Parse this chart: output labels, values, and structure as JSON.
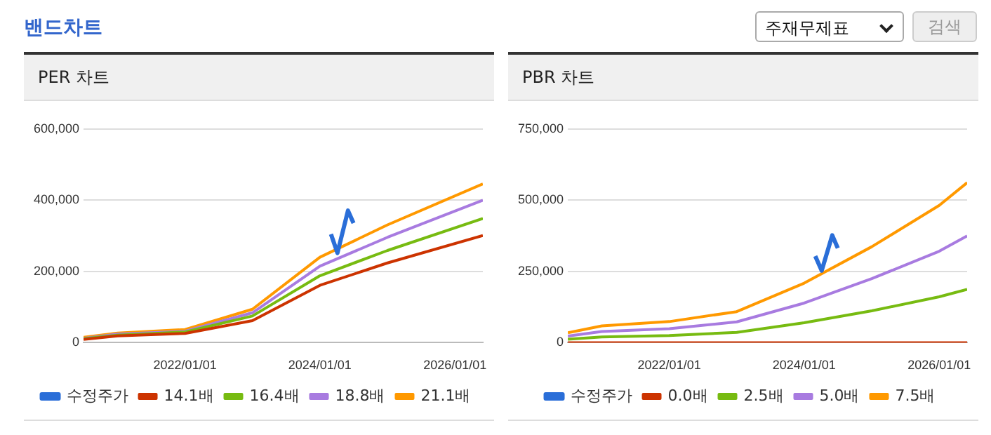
{
  "chart_data": [
    {
      "type": "line",
      "title": "PER 차트",
      "annotations": [
        "밴드차트"
      ],
      "x": [
        "2020-07",
        "2021-01",
        "2022-01",
        "2023-01",
        "2024-01",
        "2025-01",
        "2026-06"
      ],
      "series": [
        {
          "name": "수정주가",
          "color": "#2a6ed8",
          "x": [
            "2024-03-01",
            "2024-04-05",
            "2024-06-01",
            "2024-07-01"
          ],
          "values": [
            305000,
            252000,
            371000,
            336000
          ]
        },
        {
          "name": "14.1배",
          "color": "#cc3300",
          "values": [
            9000,
            19000,
            26000,
            62000,
            161000,
            224000,
            301000
          ]
        },
        {
          "name": "16.4배",
          "color": "#77bb11",
          "values": [
            11000,
            21000,
            30000,
            75000,
            188000,
            259000,
            349000
          ]
        },
        {
          "name": "18.8배",
          "color": "#a87be0",
          "values": [
            12000,
            24000,
            32000,
            84000,
            215000,
            296000,
            400000
          ]
        },
        {
          "name": "21.1배",
          "color": "#ff9900",
          "values": [
            15000,
            27000,
            37000,
            94000,
            240000,
            331000,
            446000
          ]
        }
      ],
      "xlim": [
        "2020-07",
        "2026-06"
      ],
      "xticks": [
        {
          "value": "2022-01-01",
          "label": "2022/01/01"
        },
        {
          "value": "2024-01-01",
          "label": "2024/01/01"
        },
        {
          "value": "2026-01-01",
          "label": "2026/01/01"
        }
      ],
      "ylim": [
        0,
        600000
      ],
      "yticks": [
        {
          "value": 0,
          "label": "0"
        },
        {
          "value": 200000,
          "label": "200,000"
        },
        {
          "value": 400000,
          "label": "400,000"
        },
        {
          "value": 600000,
          "label": "600,000"
        }
      ],
      "grid": "y",
      "legend": "bottom",
      "marker": "none"
    },
    {
      "type": "line",
      "title": "PBR 차트",
      "annotations": [
        "주재무제표",
        "검색"
      ],
      "x": [
        "2020-07",
        "2021-01",
        "2022-01",
        "2023-01",
        "2024-01",
        "2025-01",
        "2026-01",
        "2026-06"
      ],
      "series": [
        {
          "name": "수정주가",
          "color": "#2a6ed8",
          "x": [
            "2024-03-01",
            "2024-04-05",
            "2024-06-01",
            "2024-07-01"
          ],
          "values": [
            304000,
            253000,
            377000,
            332000
          ]
        },
        {
          "name": "0.0배",
          "color": "#cc3300",
          "values": [
            0,
            0,
            0,
            0,
            0,
            0,
            0,
            0
          ]
        },
        {
          "name": "2.5배",
          "color": "#77bb11",
          "values": [
            12000,
            20000,
            25000,
            36000,
            70000,
            112000,
            161000,
            187000
          ]
        },
        {
          "name": "5.0배",
          "color": "#a87be0",
          "values": [
            23000,
            39000,
            49000,
            73000,
            139000,
            225000,
            321000,
            375000
          ]
        },
        {
          "name": "7.5배",
          "color": "#ff9900",
          "values": [
            35000,
            59000,
            74000,
            109000,
            209000,
            337000,
            482000,
            562000
          ]
        }
      ],
      "xlim": [
        "2020-07",
        "2026-06"
      ],
      "xticks": [
        {
          "value": "2022-01-01",
          "label": "2022/01/01"
        },
        {
          "value": "2024-01-01",
          "label": "2024/01/01"
        },
        {
          "value": "2026-01-01",
          "label": "2026/01/01"
        }
      ],
      "ylim": [
        0,
        750000
      ],
      "yticks": [
        {
          "value": 0,
          "label": "0"
        },
        {
          "value": 250000,
          "label": "250,000"
        },
        {
          "value": 500000,
          "label": "500,000"
        },
        {
          "value": 750000,
          "label": "750,000"
        }
      ],
      "grid": "y",
      "legend": "bottom",
      "marker": "none"
    }
  ]
}
